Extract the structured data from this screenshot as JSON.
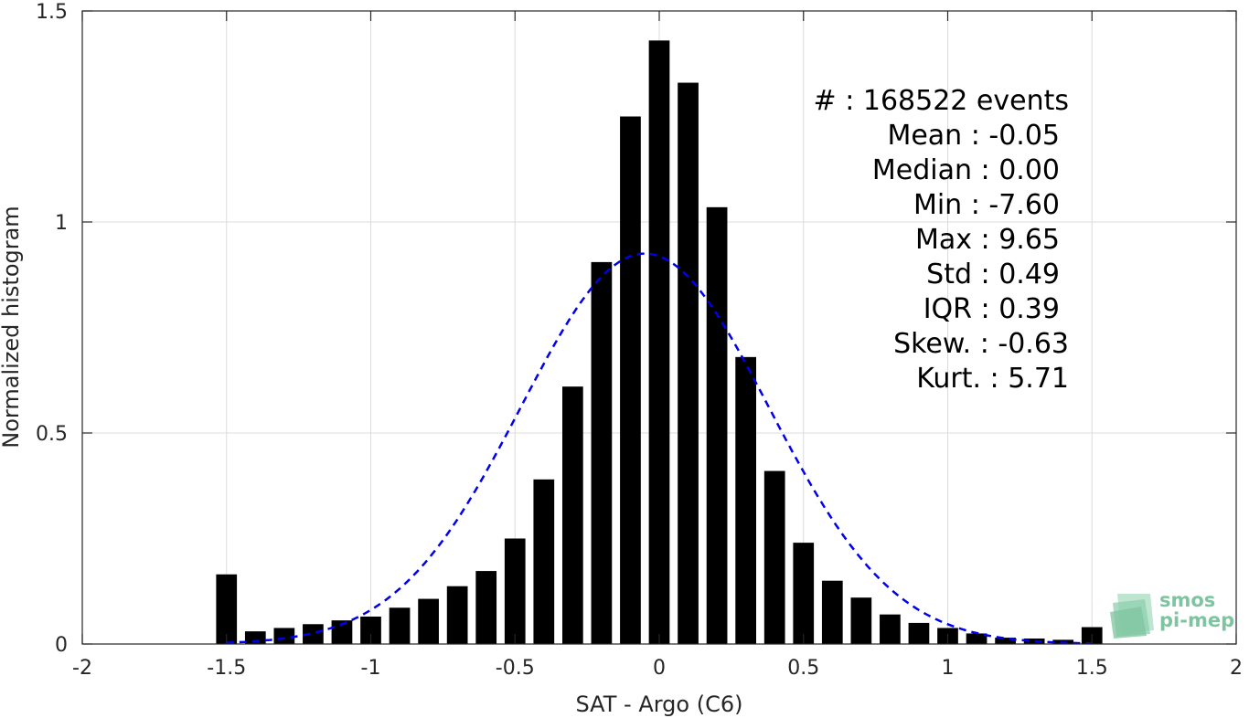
{
  "chart_data": {
    "type": "bar",
    "xlabel": "SAT - Argo (C6)",
    "ylabel": "Normalized histogram",
    "xlim": [
      -2,
      2
    ],
    "ylim": [
      0,
      1.5
    ],
    "grid": true,
    "xticks": [
      "-2",
      "-1.5",
      "-1",
      "-0.5",
      "0",
      "0.5",
      "1",
      "1.5",
      "2"
    ],
    "yticks": [
      "0",
      "0.5",
      "1",
      "1.5"
    ],
    "bin_width": 0.1,
    "x": [
      -1.5,
      -1.4,
      -1.3,
      -1.2,
      -1.1,
      -1.0,
      -0.9,
      -0.8,
      -0.7,
      -0.6,
      -0.5,
      -0.4,
      -0.3,
      -0.2,
      -0.1,
      0.0,
      0.1,
      0.2,
      0.3,
      0.4,
      0.5,
      0.6,
      0.7,
      0.8,
      0.9,
      1.0,
      1.1,
      1.2,
      1.3,
      1.4,
      1.5
    ],
    "values": [
      0.165,
      0.03,
      0.038,
      0.047,
      0.056,
      0.065,
      0.086,
      0.107,
      0.137,
      0.173,
      0.25,
      0.39,
      0.61,
      0.905,
      1.25,
      1.43,
      1.33,
      1.035,
      0.68,
      0.41,
      0.24,
      0.15,
      0.11,
      0.07,
      0.05,
      0.038,
      0.025,
      0.015,
      0.013,
      0.01,
      0.04
    ],
    "fit_curve": {
      "type": "gaussian",
      "mean": -0.05,
      "std": 0.43,
      "peak": 0.925,
      "color": "#0000ee",
      "style": "dashed"
    },
    "bar_color": "#000000",
    "annotations": [
      "#  : 168522 events",
      "Mean : -0.05",
      "Median : 0.00",
      "Min : -7.60",
      "Max : 9.65",
      "Std : 0.49",
      "IQR : 0.39",
      "Skew. : -0.63",
      "Kurt. : 5.71"
    ]
  },
  "logo": {
    "line1": "smos",
    "line2": "pi-mep",
    "color": "#7fc4a0"
  }
}
